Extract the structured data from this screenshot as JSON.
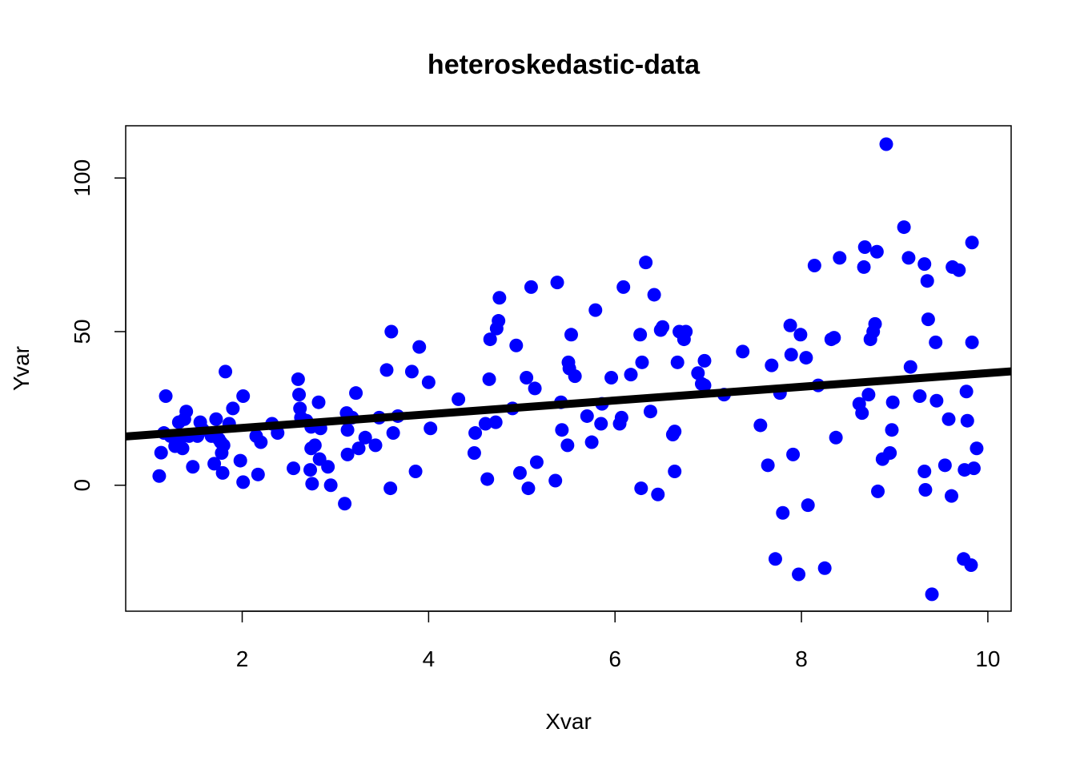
{
  "chart_data": {
    "type": "scatter",
    "title": "heteroskedastic-data",
    "xlabel": "Xvar",
    "ylabel": "Yvar",
    "xlim": [
      0.75,
      10.25
    ],
    "ylim": [
      -41,
      117
    ],
    "x_ticks": [
      2,
      4,
      6,
      8,
      10
    ],
    "y_ticks": [
      0,
      50,
      100
    ],
    "grid": false,
    "legend": "none",
    "point_color": "#0000ff",
    "line_color": "#000000",
    "regression_line": {
      "intercept": 14.2,
      "slope": 2.23
    },
    "series": [
      {
        "points": [
          [
            1.11,
            3
          ],
          [
            1.13,
            10.6
          ],
          [
            1.16,
            17
          ],
          [
            1.18,
            29
          ],
          [
            1.23,
            16
          ],
          [
            1.28,
            12.7
          ],
          [
            1.32,
            20.5
          ],
          [
            1.33,
            15
          ],
          [
            1.36,
            12
          ],
          [
            1.38,
            21.5
          ],
          [
            1.4,
            24
          ],
          [
            1.43,
            16
          ],
          [
            1.47,
            6
          ],
          [
            1.52,
            16
          ],
          [
            1.55,
            20.5
          ],
          [
            1.58,
            18
          ],
          [
            1.67,
            16
          ],
          [
            1.7,
            7
          ],
          [
            1.72,
            21.5
          ],
          [
            1.75,
            15
          ],
          [
            1.77,
            14
          ],
          [
            1.78,
            10.5
          ],
          [
            1.79,
            4
          ],
          [
            1.8,
            13
          ],
          [
            1.82,
            37
          ],
          [
            1.86,
            20
          ],
          [
            1.9,
            25
          ],
          [
            1.98,
            8
          ],
          [
            2.01,
            29
          ],
          [
            2.01,
            1
          ],
          [
            2.15,
            16
          ],
          [
            2.17,
            3.5
          ],
          [
            2.2,
            14
          ],
          [
            2.32,
            20
          ],
          [
            2.38,
            17
          ],
          [
            2.55,
            5.5
          ],
          [
            2.6,
            34.5
          ],
          [
            2.61,
            29.5
          ],
          [
            2.62,
            25
          ],
          [
            2.63,
            22
          ],
          [
            2.69,
            21
          ],
          [
            2.73,
            5
          ],
          [
            2.74,
            19
          ],
          [
            2.74,
            12
          ],
          [
            2.75,
            0.5
          ],
          [
            2.78,
            13
          ],
          [
            2.82,
            27
          ],
          [
            2.83,
            8.5
          ],
          [
            2.84,
            18.5
          ],
          [
            2.92,
            6
          ],
          [
            2.95,
            0
          ],
          [
            3.1,
            -6
          ],
          [
            3.12,
            23.5
          ],
          [
            3.13,
            10
          ],
          [
            3.13,
            18
          ],
          [
            3.18,
            22
          ],
          [
            3.22,
            30
          ],
          [
            3.25,
            12
          ],
          [
            3.32,
            15.5
          ],
          [
            3.43,
            13
          ],
          [
            3.47,
            22
          ],
          [
            3.55,
            37.5
          ],
          [
            3.59,
            -1
          ],
          [
            3.6,
            50
          ],
          [
            3.62,
            17
          ],
          [
            3.67,
            22.5
          ],
          [
            3.82,
            37
          ],
          [
            3.86,
            4.5
          ],
          [
            3.9,
            45
          ],
          [
            4.0,
            33.5
          ],
          [
            4.02,
            18.5
          ],
          [
            4.32,
            28
          ],
          [
            4.49,
            10.5
          ],
          [
            4.5,
            17
          ],
          [
            4.61,
            20
          ],
          [
            4.63,
            2
          ],
          [
            4.65,
            34.5
          ],
          [
            4.66,
            47.5
          ],
          [
            4.72,
            20.5
          ],
          [
            4.73,
            51
          ],
          [
            4.75,
            53.5
          ],
          [
            4.76,
            61
          ],
          [
            4.9,
            25
          ],
          [
            4.94,
            45.5
          ],
          [
            4.98,
            4
          ],
          [
            5.05,
            35
          ],
          [
            5.07,
            -1
          ],
          [
            5.1,
            64.5
          ],
          [
            5.14,
            31.5
          ],
          [
            5.16,
            7.5
          ],
          [
            5.36,
            1.5
          ],
          [
            5.38,
            66
          ],
          [
            5.42,
            27
          ],
          [
            5.43,
            18
          ],
          [
            5.49,
            13
          ],
          [
            5.5,
            40
          ],
          [
            5.51,
            38
          ],
          [
            5.53,
            49
          ],
          [
            5.57,
            35.5
          ],
          [
            5.7,
            22.5
          ],
          [
            5.75,
            14
          ],
          [
            5.79,
            57
          ],
          [
            5.85,
            20
          ],
          [
            5.86,
            26.5
          ],
          [
            5.96,
            35
          ],
          [
            6.05,
            20
          ],
          [
            6.07,
            22
          ],
          [
            6.09,
            64.5
          ],
          [
            6.17,
            36
          ],
          [
            6.27,
            49
          ],
          [
            6.28,
            -1
          ],
          [
            6.29,
            40
          ],
          [
            6.33,
            72.5
          ],
          [
            6.38,
            24
          ],
          [
            6.42,
            62
          ],
          [
            6.46,
            -3
          ],
          [
            6.49,
            50.5
          ],
          [
            6.51,
            51.5
          ],
          [
            6.62,
            16.5
          ],
          [
            6.64,
            17.5
          ],
          [
            6.64,
            4.5
          ],
          [
            6.67,
            40
          ],
          [
            6.69,
            50
          ],
          [
            6.74,
            47.5
          ],
          [
            6.76,
            50
          ],
          [
            6.89,
            36.5
          ],
          [
            6.93,
            33
          ],
          [
            6.96,
            40.5
          ],
          [
            6.96,
            32.5
          ],
          [
            7.17,
            29.5
          ],
          [
            7.37,
            43.5
          ],
          [
            7.56,
            19.5
          ],
          [
            7.64,
            6.5
          ],
          [
            7.68,
            39
          ],
          [
            7.72,
            -24
          ],
          [
            7.77,
            30
          ],
          [
            7.8,
            -9
          ],
          [
            7.88,
            52
          ],
          [
            7.89,
            42.5
          ],
          [
            7.91,
            10
          ],
          [
            7.97,
            -29
          ],
          [
            7.99,
            49
          ],
          [
            8.05,
            41.5
          ],
          [
            8.07,
            -6.5
          ],
          [
            8.14,
            71.5
          ],
          [
            8.18,
            32.5
          ],
          [
            8.25,
            -27
          ],
          [
            8.32,
            47.5
          ],
          [
            8.35,
            48
          ],
          [
            8.37,
            15.5
          ],
          [
            8.41,
            74
          ],
          [
            8.62,
            26.5
          ],
          [
            8.65,
            23.5
          ],
          [
            8.67,
            71
          ],
          [
            8.68,
            77.5
          ],
          [
            8.72,
            29.5
          ],
          [
            8.74,
            47.5
          ],
          [
            8.77,
            50
          ],
          [
            8.79,
            52.5
          ],
          [
            8.81,
            76
          ],
          [
            8.82,
            -2
          ],
          [
            8.87,
            8.5
          ],
          [
            8.91,
            111
          ],
          [
            8.95,
            10.5
          ],
          [
            8.97,
            18
          ],
          [
            8.98,
            27
          ],
          [
            9.1,
            84
          ],
          [
            9.15,
            74
          ],
          [
            9.17,
            38.5
          ],
          [
            9.27,
            29
          ],
          [
            9.32,
            72
          ],
          [
            9.32,
            4.5
          ],
          [
            9.33,
            -1.5
          ],
          [
            9.35,
            66.5
          ],
          [
            9.36,
            54
          ],
          [
            9.4,
            -35.5
          ],
          [
            9.44,
            46.5
          ],
          [
            9.45,
            27.5
          ],
          [
            9.54,
            6.5
          ],
          [
            9.58,
            21.5
          ],
          [
            9.61,
            -3.5
          ],
          [
            9.62,
            71
          ],
          [
            9.69,
            70
          ],
          [
            9.74,
            -24
          ],
          [
            9.75,
            5
          ],
          [
            9.77,
            30.5
          ],
          [
            9.78,
            21
          ],
          [
            9.82,
            -26
          ],
          [
            9.83,
            46.5
          ],
          [
            9.83,
            79
          ],
          [
            9.85,
            5.5
          ],
          [
            9.88,
            12
          ]
        ]
      }
    ]
  }
}
